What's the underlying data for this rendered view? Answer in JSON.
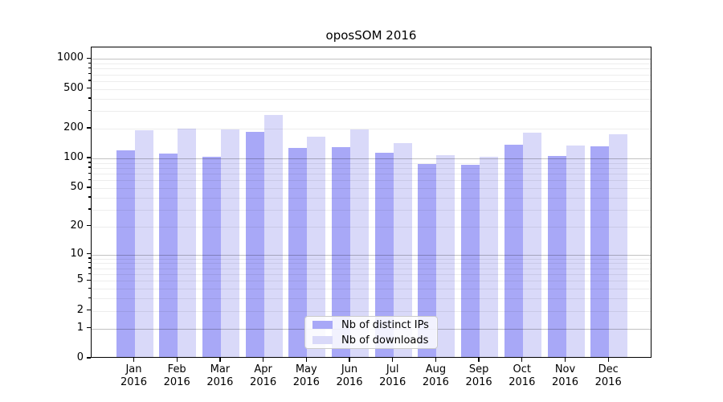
{
  "title": "oposSOM 2016",
  "chart_data": {
    "type": "bar",
    "title": "oposSOM 2016",
    "categories": [
      "Jan 2016",
      "Feb 2016",
      "Mar 2016",
      "Apr 2016",
      "May 2016",
      "Jun 2016",
      "Jul 2016",
      "Aug 2016",
      "Sep 2016",
      "Oct 2016",
      "Nov 2016",
      "Dec 2016"
    ],
    "series": [
      {
        "name": "Nb of distinct IPs",
        "color": "#a8a8f7",
        "values": [
          117,
          108,
          100,
          180,
          123,
          126,
          109,
          85,
          83,
          132,
          103,
          127
        ]
      },
      {
        "name": "Nb of downloads",
        "color": "#d9d9f9",
        "values": [
          186,
          192,
          190,
          264,
          161,
          188,
          137,
          104,
          101,
          175,
          130,
          168
        ]
      }
    ],
    "xlabel": "",
    "ylabel": "",
    "yscale": "log1p",
    "ylim": [
      0,
      1300
    ],
    "yticks": [
      0,
      1,
      2,
      5,
      10,
      20,
      50,
      100,
      200,
      500,
      1000
    ],
    "major_gridlines": [
      1,
      10,
      100,
      1000
    ],
    "minor_gridlines": [
      2,
      3,
      4,
      5,
      6,
      7,
      8,
      9,
      20,
      30,
      40,
      50,
      60,
      70,
      80,
      90,
      200,
      300,
      400,
      500,
      600,
      700,
      800,
      900
    ],
    "grid": true,
    "legend": {
      "position": "lower center",
      "entries": [
        "Nb of distinct IPs",
        "Nb of downloads"
      ]
    }
  }
}
